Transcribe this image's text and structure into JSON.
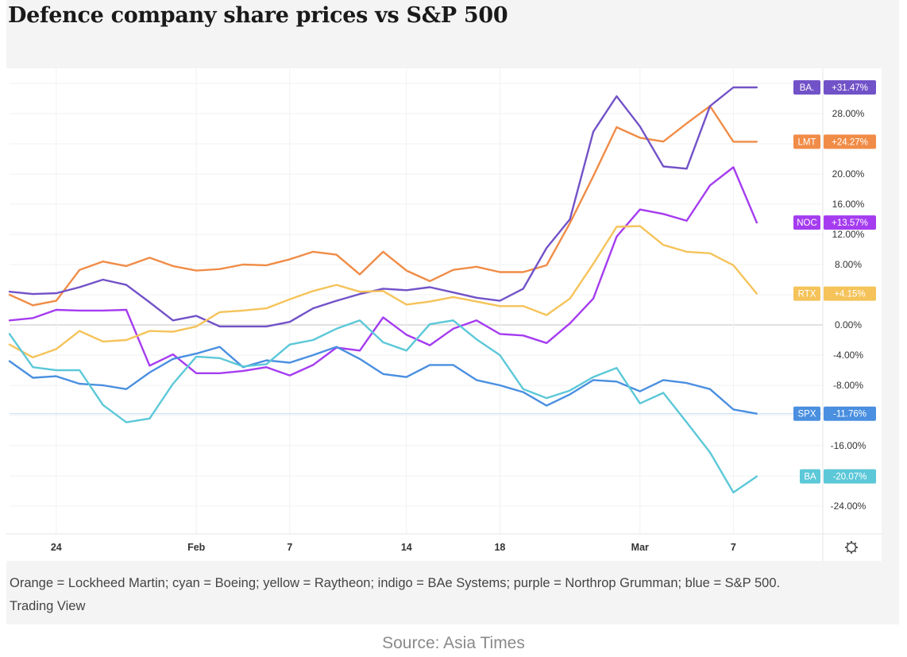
{
  "page": {
    "title": "Defence company share prices vs S&P 500",
    "caption": "Orange = Lockheed Martin; cyan = Boeing; yellow = Raytheon; indigo = BAe Systems; purple = Northrop Grumman; blue = S&P 500.",
    "caption_source": "Trading View",
    "source": "Source: Asia Times",
    "settings_icon": "gear-icon"
  },
  "chart_data": {
    "type": "line",
    "title": "Defence company share prices vs S&P 500",
    "xlabel": "",
    "ylabel": "",
    "x_tick_labels": [
      "24",
      "Feb",
      "7",
      "14",
      "18",
      "Mar",
      "7"
    ],
    "x_tick_index": [
      2,
      8,
      12,
      17,
      21,
      27,
      31
    ],
    "y_tick_labels": [
      "28.00%",
      "20.00%",
      "16.00%",
      "12.00%",
      "8.00%",
      "0.00%",
      "-4.00%",
      "-8.00%",
      "-16.00%",
      "-24.00%"
    ],
    "y_tick_values": [
      28,
      20,
      16,
      12,
      8,
      0,
      -4,
      -8,
      -16,
      -24
    ],
    "ylim": [
      -28.5,
      34
    ],
    "grid": true,
    "zero_line": true,
    "point_count": 33,
    "series": [
      {
        "name": "LMT",
        "company": "Lockheed Martin",
        "color": "#f08c47",
        "last_label": "+24.27%",
        "values": [
          4.0,
          2.6,
          3.2,
          7.3,
          8.4,
          7.8,
          8.9,
          7.8,
          7.2,
          7.4,
          8.0,
          7.9,
          8.7,
          9.7,
          9.3,
          6.7,
          9.7,
          7.2,
          5.8,
          7.3,
          7.7,
          7.0,
          7.0,
          7.9,
          13.5,
          19.7,
          26.2,
          24.8,
          24.3,
          26.7,
          29.0,
          24.27,
          24.27
        ]
      },
      {
        "name": "BA.",
        "company": "BAe Systems",
        "color": "#7252c8",
        "last_label": "+31.47%",
        "values": [
          4.4,
          4.1,
          4.2,
          5.0,
          6.0,
          5.3,
          3.0,
          0.6,
          1.2,
          -0.2,
          -0.2,
          -0.2,
          0.4,
          2.2,
          3.2,
          4.1,
          4.8,
          4.6,
          5.0,
          4.3,
          3.6,
          3.2,
          4.8,
          10.2,
          14.0,
          25.6,
          30.3,
          26.3,
          21.0,
          20.7,
          29.0,
          31.47,
          31.47
        ]
      },
      {
        "name": "NOC",
        "company": "Northrop Grumman",
        "color": "#a53cf0",
        "last_label": "+13.57%",
        "values": [
          0.6,
          0.9,
          2.0,
          1.9,
          1.9,
          2.0,
          -5.4,
          -3.9,
          -6.4,
          -6.4,
          -6.1,
          -5.6,
          -6.7,
          -5.3,
          -3.0,
          -3.4,
          1.0,
          -1.3,
          -2.7,
          -0.5,
          0.6,
          -1.2,
          -1.4,
          -2.4,
          0.2,
          3.5,
          11.7,
          15.3,
          14.7,
          13.8,
          18.5,
          20.9,
          13.57
        ]
      },
      {
        "name": "RTX",
        "company": "Raytheon",
        "color": "#f5c35a",
        "last_label": "+4.15%",
        "values": [
          -2.6,
          -4.3,
          -3.2,
          -0.8,
          -2.2,
          -2.0,
          -0.8,
          -0.9,
          -0.2,
          1.7,
          1.9,
          2.2,
          3.4,
          4.5,
          5.3,
          4.4,
          4.5,
          2.7,
          3.1,
          3.7,
          3.1,
          2.5,
          2.5,
          1.3,
          3.5,
          8.1,
          13.0,
          13.1,
          10.6,
          9.7,
          9.5,
          7.9,
          4.15
        ]
      },
      {
        "name": "SPX",
        "company": "S&P 500",
        "color": "#4a8fe0",
        "last_label": "-11.76%",
        "values": [
          -4.8,
          -7.0,
          -6.8,
          -7.8,
          -8.0,
          -8.5,
          -6.3,
          -4.5,
          -3.8,
          -2.9,
          -5.6,
          -4.7,
          -5.0,
          -4.0,
          -2.9,
          -4.5,
          -6.5,
          -6.9,
          -5.3,
          -5.3,
          -7.3,
          -8.0,
          -8.9,
          -10.7,
          -9.2,
          -7.3,
          -7.5,
          -8.8,
          -7.3,
          -7.7,
          -8.5,
          -11.2,
          -11.76
        ]
      },
      {
        "name": "BA",
        "company": "Boeing",
        "color": "#5cc8d8",
        "last_label": "-20.07%",
        "values": [
          -1.2,
          -5.6,
          -6.0,
          -6.0,
          -10.6,
          -12.9,
          -12.4,
          -7.8,
          -4.2,
          -4.4,
          -5.5,
          -5.2,
          -2.6,
          -2.0,
          -0.5,
          0.6,
          -2.3,
          -3.4,
          0.1,
          0.6,
          -1.9,
          -4.0,
          -8.5,
          -9.7,
          -8.7,
          -6.9,
          -5.7,
          -10.4,
          -9.0,
          -12.9,
          -16.9,
          -22.2,
          -20.07
        ]
      }
    ]
  }
}
